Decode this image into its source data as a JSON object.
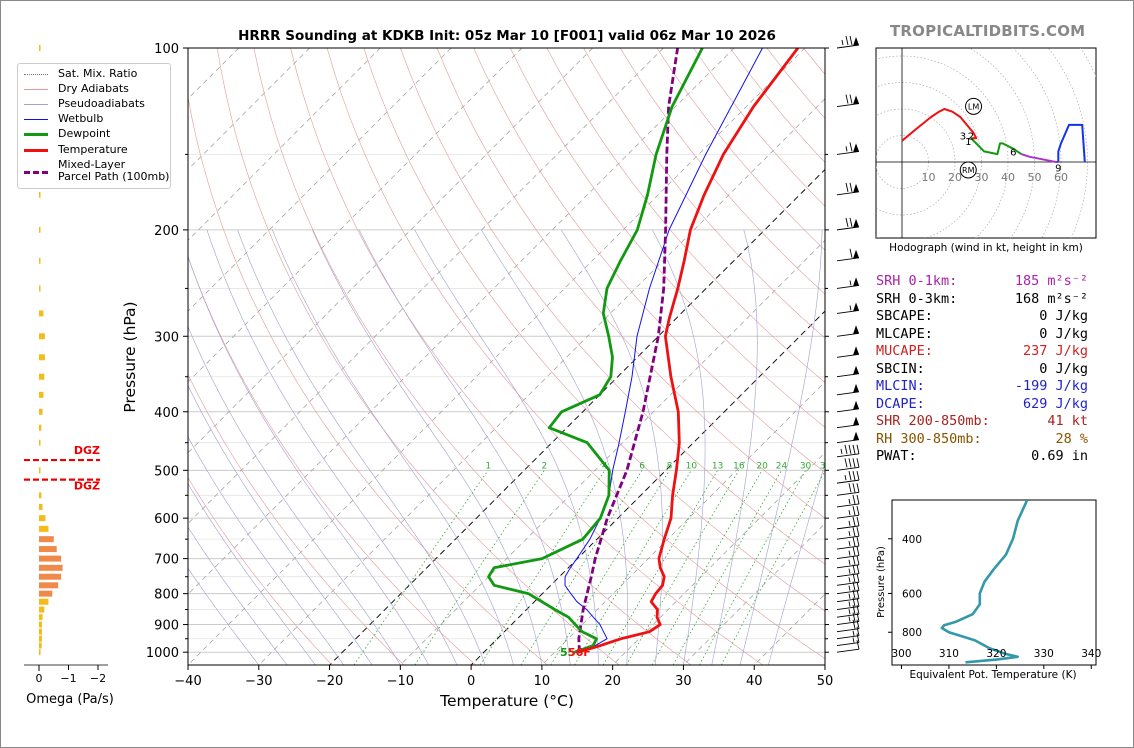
{
  "title": "HRRR Sounding at KDKB Init: 05z Mar 10 [F001] valid 06z Mar 10 2026",
  "brand": "TROPICALTIDBITS.COM",
  "colors": {
    "temperature": "#ee1111",
    "dewpoint": "#119911",
    "wetbulb": "#1111ee",
    "parcel": "#800080",
    "dgz": "#ee0000",
    "theta_e": "#3399aa",
    "hodo_0_3": "#ee1111",
    "hodo_3_6": "#119911",
    "hodo_6_9": "#aa33cc",
    "hodo_9_12": "#1133ee"
  },
  "legend": [
    {
      "label": "Sat. Mix. Ratio",
      "style": "dotted-green"
    },
    {
      "label": "Dry Adiabats",
      "style": "thin-red"
    },
    {
      "label": "Pseudoadiabats",
      "style": "thin-blue"
    },
    {
      "label": "Wetbulb",
      "style": "wetbulb"
    },
    {
      "label": "Dewpoint",
      "style": "dewpoint"
    },
    {
      "label": "Temperature",
      "style": "temperature"
    },
    {
      "label": "Mixed-Layer",
      "label2": "Parcel Path (100mb)",
      "style": "parcel"
    }
  ],
  "omega": {
    "xlabel": "Omega (Pa/s)",
    "ticks": [
      "0",
      "−1",
      "−2"
    ],
    "dgz_label": "DGZ",
    "levels": [
      1000,
      975,
      950,
      925,
      900,
      875,
      850,
      825,
      800,
      775,
      750,
      725,
      700,
      675,
      650,
      625,
      600,
      575,
      550,
      500,
      450,
      425,
      400,
      375,
      350,
      325,
      300,
      275,
      250,
      225,
      200,
      175,
      150,
      125,
      100
    ],
    "values": [
      -0.04,
      -0.09,
      -0.1,
      -0.1,
      -0.1,
      -0.12,
      -0.18,
      -0.32,
      -0.45,
      -0.65,
      -0.75,
      -0.8,
      -0.75,
      -0.6,
      -0.5,
      -0.32,
      -0.22,
      -0.12,
      -0.08,
      -0.03,
      -0.03,
      -0.08,
      -0.12,
      -0.15,
      -0.18,
      -0.2,
      -0.2,
      -0.15,
      -0.05,
      -0.01,
      -0.01,
      -0.01,
      -0.02,
      -0.02,
      -0.01
    ],
    "dgz_top_hpa": 470,
    "dgz_bottom_hpa": 530
  },
  "chart_data": [
    {
      "type": "line",
      "title": "HRRR Sounding at KDKB Init: 05z Mar 10 [F001] valid 06z Mar 10 2026",
      "xlabel": "Temperature (°C)",
      "ylabel": "Pressure (hPa)",
      "xlim": [
        -40,
        50
      ],
      "ylim": [
        1050,
        100
      ],
      "y_scale": "log",
      "x_ticks": [
        -40,
        -30,
        -20,
        -10,
        0,
        10,
        20,
        30,
        40,
        50
      ],
      "y_ticks": [
        100,
        200,
        300,
        400,
        500,
        600,
        700,
        800,
        900,
        1000
      ],
      "surface_annotation": {
        "dewpoint_label": "55",
        "temp_label": "56F"
      },
      "mixing_ratio_labels": [
        "1",
        "2",
        "4",
        "6",
        "8",
        "10",
        "13",
        "16",
        "20",
        "24",
        "30",
        "36"
      ],
      "series": [
        {
          "name": "Temperature",
          "pressure": [
            1000,
            975,
            950,
            925,
            900,
            875,
            850,
            825,
            800,
            775,
            750,
            725,
            700,
            650,
            600,
            550,
            500,
            450,
            400,
            350,
            300,
            280,
            250,
            225,
            200,
            175,
            150,
            125,
            100
          ],
          "temp": [
            13.3,
            15.5,
            17.5,
            20.5,
            21.0,
            19.5,
            18.5,
            16.5,
            16.0,
            15.8,
            14.8,
            13.0,
            11.5,
            9.5,
            7.5,
            4.5,
            1.5,
            -2.0,
            -6.5,
            -12.5,
            -19.0,
            -21.0,
            -24.0,
            -27.0,
            -30.5,
            -33.5,
            -36.5,
            -39.0,
            -41.0
          ]
        },
        {
          "name": "Dewpoint",
          "pressure": [
            1000,
            975,
            950,
            925,
            900,
            875,
            850,
            800,
            775,
            750,
            725,
            700,
            650,
            600,
            550,
            500,
            450,
            425,
            400,
            375,
            350,
            325,
            300,
            275,
            250,
            225,
            200,
            175,
            150,
            125,
            100
          ],
          "temp": [
            12.8,
            14.5,
            14.0,
            11.0,
            9.0,
            7.0,
            4.0,
            -2.0,
            -8.0,
            -10.0,
            -10.5,
            -5.0,
            -2.0,
            -2.5,
            -4.5,
            -8.0,
            -15.0,
            -22.5,
            -23.0,
            -20.0,
            -21.0,
            -23.5,
            -27.0,
            -31.0,
            -34.0,
            -36.0,
            -38.0,
            -41.5,
            -46.0,
            -50.5,
            -54.5
          ]
        },
        {
          "name": "Wetbulb",
          "pressure": [
            1000,
            975,
            950,
            925,
            900,
            875,
            850,
            825,
            800,
            775,
            750,
            725,
            700,
            650,
            600,
            550,
            500,
            450,
            400,
            350,
            300,
            250,
            200,
            150,
            100
          ],
          "temp": [
            13.0,
            14.8,
            15.5,
            14.0,
            12.5,
            10.5,
            8.5,
            6.0,
            4.0,
            2.0,
            0.8,
            0.3,
            -0.1,
            -1.0,
            -2.5,
            -4.5,
            -7.5,
            -10.5,
            -14.0,
            -18.0,
            -23.0,
            -28.0,
            -33.5,
            -39.0,
            -46.0
          ]
        },
        {
          "name": "Mixed-Layer Parcel Path (100mb)",
          "pressure": [
            1000,
            950,
            900,
            850,
            800,
            750,
            700,
            600,
            500,
            400,
            300,
            250,
            200,
            150,
            125,
            100
          ],
          "temp": [
            13.5,
            11.5,
            9.8,
            8.0,
            6.3,
            4.5,
            2.5,
            -1.5,
            -5.5,
            -11.5,
            -20.0,
            -26.0,
            -34.0,
            -44.5,
            -51.0,
            -58.0
          ]
        }
      ]
    },
    {
      "type": "line",
      "title": "Hodograph (wind in kt, height in km)",
      "x_ring_labels": [
        10,
        20,
        30,
        40,
        50,
        60
      ],
      "height_labels": [
        "1",
        "2",
        "3",
        "6",
        "9"
      ],
      "lm_label": "LM",
      "rm_label": "RM",
      "lm": [
        27,
        21
      ],
      "rm": [
        25,
        -3
      ],
      "segments": [
        {
          "name": "0-3 km",
          "u": [
            0,
            6,
            11,
            14,
            16,
            19,
            22,
            27,
            28,
            26
          ],
          "v": [
            8,
            13,
            17,
            19,
            20,
            19,
            17,
            11,
            9,
            9
          ]
        },
        {
          "name": "3-6 km",
          "u": [
            26,
            28,
            31,
            36,
            37,
            38,
            42,
            45
          ],
          "v": [
            9,
            7,
            4,
            3,
            7,
            7,
            5,
            3
          ]
        },
        {
          "name": "6-9 km",
          "u": [
            45,
            48,
            53,
            58,
            59
          ],
          "v": [
            3,
            2,
            1,
            0,
            0
          ]
        },
        {
          "name": "9-12 km",
          "u": [
            59,
            59,
            60,
            63,
            68,
            69
          ],
          "v": [
            0,
            4,
            7,
            14,
            14,
            0
          ]
        }
      ]
    },
    {
      "type": "line",
      "xlabel": "Equivalent Pot. Temperature (K)",
      "ylabel": "Pressure (hPa)",
      "xlim": [
        298,
        341
      ],
      "x_ticks": [
        300,
        310,
        320,
        330,
        340
      ],
      "y_ticks": [
        400,
        600,
        800
      ],
      "ylim": [
        1020,
        300
      ],
      "series": [
        {
          "name": "theta-e",
          "pressure": [
            1000,
            980,
            960,
            940,
            900,
            850,
            800,
            775,
            760,
            740,
            700,
            650,
            600,
            550,
            500,
            450,
            400,
            350,
            300
          ],
          "theta": [
            313.5,
            320.0,
            324.5,
            322.0,
            318.5,
            315.5,
            310.0,
            308.5,
            309.0,
            311.5,
            315.0,
            316.5,
            316.5,
            317.5,
            319.5,
            322.0,
            323.5,
            324.5,
            326.5
          ]
        }
      ]
    }
  ],
  "stats": [
    {
      "key": "SRH 0-1km:",
      "value": "185 m²s⁻²",
      "color": "#aa22aa"
    },
    {
      "key": "SRH 0-3km:",
      "value": "168 m²s⁻²",
      "color": "#000000"
    },
    {
      "key": "SBCAPE:",
      "value": "0 J/kg",
      "color": "#000000"
    },
    {
      "key": "MLCAPE:",
      "value": "0 J/kg",
      "color": "#000000"
    },
    {
      "key": "MUCAPE:",
      "value": "237 J/kg",
      "color": "#cc2222"
    },
    {
      "key": "SBCIN:",
      "value": "0 J/kg",
      "color": "#000000"
    },
    {
      "key": "MLCIN:",
      "value": "-199 J/kg",
      "color": "#2222cc"
    },
    {
      "key": "DCAPE:",
      "value": "629 J/kg",
      "color": "#2222cc"
    },
    {
      "key": "SHR 200-850mb:",
      "value": "41 kt",
      "color": "#aa2222"
    },
    {
      "key": "RH 300-850mb:",
      "value": "28 %",
      "color": "#885500"
    },
    {
      "key": "PWAT:",
      "value": "0.69 in",
      "color": "#000000"
    }
  ],
  "wind_barbs": {
    "pressure": [
      1000,
      975,
      950,
      925,
      900,
      875,
      850,
      825,
      800,
      775,
      750,
      725,
      700,
      675,
      650,
      625,
      600,
      575,
      550,
      525,
      500,
      475,
      450,
      425,
      400,
      375,
      350,
      325,
      300,
      275,
      250,
      225,
      200,
      175,
      150,
      125,
      100
    ],
    "speed_kt": [
      12,
      15,
      15,
      20,
      25,
      25,
      25,
      25,
      25,
      25,
      25,
      25,
      25,
      25,
      25,
      25,
      25,
      25,
      30,
      35,
      40,
      45,
      50,
      50,
      50,
      50,
      50,
      50,
      50,
      55,
      55,
      60,
      70,
      70,
      65,
      70,
      75
    ]
  }
}
